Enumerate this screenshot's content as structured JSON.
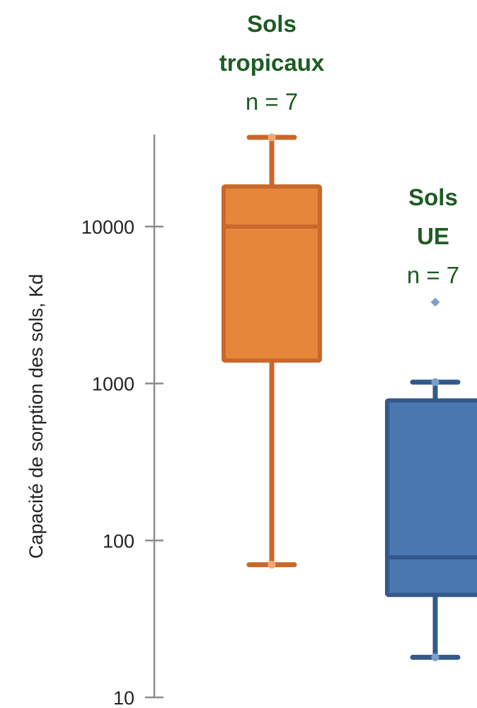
{
  "chart_data": {
    "type": "box",
    "ylabel": "Capacité de sorption des sols, Kd",
    "yscale": "log",
    "ylim": [
      10,
      40000
    ],
    "yticks": [
      "10",
      "100",
      "1000",
      "10000"
    ],
    "grid": false,
    "series": [
      {
        "name_lines": [
          "Sols",
          "tropicaux"
        ],
        "n_label": "n = 7",
        "min": 70,
        "q1": 1400,
        "median": 10000,
        "q3": 18000,
        "max": 37000,
        "outliers": [],
        "color": "#E5863A",
        "edge_color": "#C9682A",
        "label_color": "#1D5C23"
      },
      {
        "name_lines": [
          "Sols",
          "UE"
        ],
        "n_label": "n = 7",
        "min": 18,
        "q1": 45,
        "median": 78,
        "q3": 780,
        "max": 1020,
        "outliers": [
          3300
        ],
        "color": "#4A77B0",
        "edge_color": "#33598C",
        "label_color": "#1D5C23"
      }
    ]
  }
}
